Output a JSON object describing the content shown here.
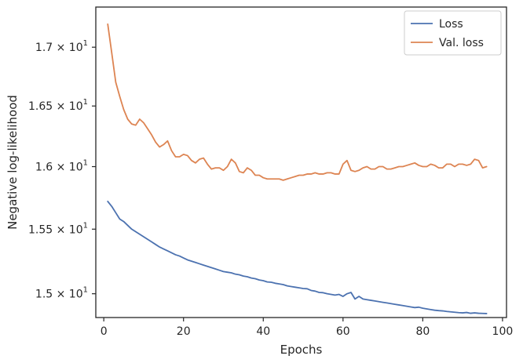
{
  "chart_data": {
    "type": "line",
    "xlabel": "Epochs",
    "ylabel": "Negative log-likelihood",
    "yscale": "log",
    "xlim": [
      -2,
      101
    ],
    "ylim": [
      14.82,
      17.35
    ],
    "grid": false,
    "legend_position": "top-right",
    "x_ticks": [
      0,
      20,
      40,
      60,
      80,
      100
    ],
    "x_tick_labels": [
      "0",
      "20",
      "40",
      "60",
      "80",
      "100"
    ],
    "y_ticks": [
      15.0,
      15.5,
      16.0,
      16.5,
      17.0
    ],
    "y_tick_labels": [
      {
        "mantissa": "1.5",
        "base": "10",
        "exp": "1"
      },
      {
        "mantissa": "1.55",
        "base": "10",
        "exp": "1"
      },
      {
        "mantissa": "1.6",
        "base": "10",
        "exp": "1"
      },
      {
        "mantissa": "1.65",
        "base": "10",
        "exp": "1"
      },
      {
        "mantissa": "1.7",
        "base": "10",
        "exp": "1"
      }
    ],
    "times_sign": "×",
    "series": [
      {
        "name": "Loss",
        "color": "#4c72b0",
        "x": [
          1,
          2,
          3,
          4,
          5,
          6,
          7,
          8,
          9,
          10,
          11,
          12,
          13,
          14,
          15,
          16,
          17,
          18,
          19,
          20,
          21,
          22,
          23,
          24,
          25,
          26,
          27,
          28,
          29,
          30,
          31,
          32,
          33,
          34,
          35,
          36,
          37,
          38,
          39,
          40,
          41,
          42,
          43,
          44,
          45,
          46,
          47,
          48,
          49,
          50,
          51,
          52,
          53,
          54,
          55,
          56,
          57,
          58,
          59,
          60,
          61,
          62,
          63,
          64,
          65,
          66,
          67,
          68,
          69,
          70,
          71,
          72,
          73,
          74,
          75,
          76,
          77,
          78,
          79,
          80,
          81,
          82,
          83,
          84,
          85,
          86,
          87,
          88,
          89,
          90,
          91,
          92,
          93,
          94,
          95,
          96
        ],
        "y": [
          15.72,
          15.68,
          15.63,
          15.58,
          15.56,
          15.53,
          15.5,
          15.48,
          15.46,
          15.44,
          15.42,
          15.4,
          15.38,
          15.36,
          15.345,
          15.33,
          15.315,
          15.3,
          15.29,
          15.275,
          15.26,
          15.25,
          15.24,
          15.23,
          15.22,
          15.21,
          15.2,
          15.19,
          15.18,
          15.17,
          15.165,
          15.16,
          15.15,
          15.145,
          15.135,
          15.13,
          15.12,
          15.115,
          15.105,
          15.1,
          15.09,
          15.088,
          15.08,
          15.075,
          15.07,
          15.06,
          15.055,
          15.05,
          15.045,
          15.04,
          15.038,
          15.025,
          15.02,
          15.01,
          15.008,
          15.0,
          14.995,
          14.99,
          14.995,
          14.98,
          15.0,
          15.01,
          14.96,
          14.98,
          14.96,
          14.955,
          14.95,
          14.945,
          14.94,
          14.935,
          14.93,
          14.925,
          14.92,
          14.915,
          14.91,
          14.905,
          14.9,
          14.895,
          14.898,
          14.89,
          14.885,
          14.88,
          14.875,
          14.872,
          14.87,
          14.866,
          14.863,
          14.86,
          14.857,
          14.855,
          14.858,
          14.852,
          14.855,
          14.852,
          14.851,
          14.85
        ]
      },
      {
        "name": "Val. loss",
        "color": "#dd8452",
        "x": [
          1,
          2,
          3,
          4,
          5,
          6,
          7,
          8,
          9,
          10,
          11,
          12,
          13,
          14,
          15,
          16,
          17,
          18,
          19,
          20,
          21,
          22,
          23,
          24,
          25,
          26,
          27,
          28,
          29,
          30,
          31,
          32,
          33,
          34,
          35,
          36,
          37,
          38,
          39,
          40,
          41,
          42,
          43,
          44,
          45,
          46,
          47,
          48,
          49,
          50,
          51,
          52,
          53,
          54,
          55,
          56,
          57,
          58,
          59,
          60,
          61,
          62,
          63,
          64,
          65,
          66,
          67,
          68,
          69,
          70,
          71,
          72,
          73,
          74,
          75,
          76,
          77,
          78,
          79,
          80,
          81,
          82,
          83,
          84,
          85,
          86,
          87,
          88,
          89,
          90,
          91,
          92,
          93,
          94,
          95,
          96
        ],
        "y": [
          17.2,
          16.95,
          16.7,
          16.58,
          16.47,
          16.39,
          16.35,
          16.34,
          16.39,
          16.36,
          16.31,
          16.26,
          16.2,
          16.16,
          16.18,
          16.21,
          16.13,
          16.08,
          16.08,
          16.1,
          16.09,
          16.05,
          16.03,
          16.06,
          16.07,
          16.02,
          15.98,
          15.99,
          15.99,
          15.97,
          16.0,
          16.06,
          16.03,
          15.96,
          15.95,
          15.99,
          15.97,
          15.93,
          15.93,
          15.91,
          15.9,
          15.9,
          15.9,
          15.9,
          15.89,
          15.9,
          15.91,
          15.92,
          15.93,
          15.93,
          15.94,
          15.94,
          15.95,
          15.94,
          15.94,
          15.95,
          15.95,
          15.94,
          15.94,
          16.02,
          16.05,
          15.97,
          15.96,
          15.97,
          15.99,
          16.0,
          15.98,
          15.98,
          16.0,
          16.0,
          15.98,
          15.98,
          15.99,
          16.0,
          16.0,
          16.01,
          16.02,
          16.03,
          16.01,
          16.0,
          16.0,
          16.02,
          16.01,
          15.99,
          15.99,
          16.02,
          16.02,
          16.0,
          16.02,
          16.02,
          16.01,
          16.02,
          16.06,
          16.05,
          15.99,
          16.0
        ]
      }
    ]
  }
}
